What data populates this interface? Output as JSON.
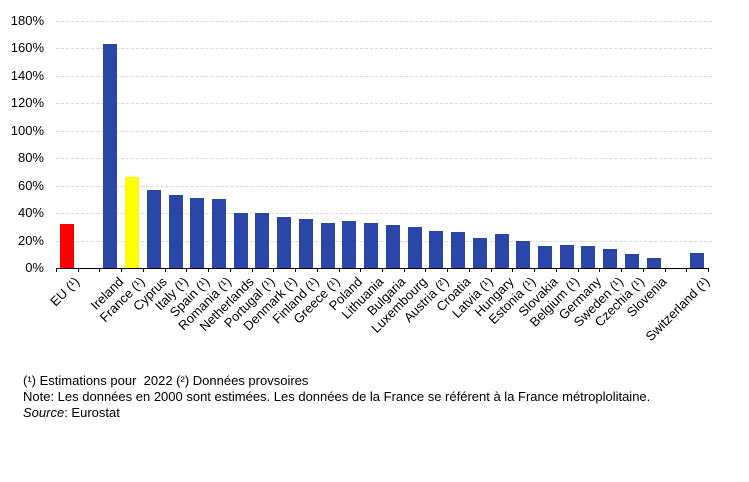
{
  "chart_data": {
    "type": "bar",
    "title": "",
    "xlabel": "",
    "ylabel": "",
    "unit": "%",
    "ylim": [
      0,
      180
    ],
    "ytick_step": 20,
    "ytick_labels": [
      "0%",
      "20%",
      "40%",
      "60%",
      "80%",
      "100%",
      "120%",
      "140%",
      "160%",
      "180%"
    ],
    "grid": "horizontal-dashed",
    "legend": "none",
    "bars": [
      {
        "label": "EU (¹)",
        "value": 32,
        "color": "#FF0000"
      },
      {
        "label": "Ireland",
        "value": 163,
        "color": "#2946A8"
      },
      {
        "label": "France (¹)",
        "value": 66,
        "color": "#FFFF00"
      },
      {
        "label": "Cyprus",
        "value": 57,
        "color": "#2946A8"
      },
      {
        "label": "Italy (¹)",
        "value": 53,
        "color": "#2946A8"
      },
      {
        "label": "Spain (¹)",
        "value": 51,
        "color": "#2946A8"
      },
      {
        "label": "Romania (¹)",
        "value": 50,
        "color": "#2946A8"
      },
      {
        "label": "Netherlands",
        "value": 40,
        "color": "#2946A8"
      },
      {
        "label": "Portugal (¹)",
        "value": 40,
        "color": "#2946A8"
      },
      {
        "label": "Denmark (¹)",
        "value": 37,
        "color": "#2946A8"
      },
      {
        "label": "Finland (¹)",
        "value": 36,
        "color": "#2946A8"
      },
      {
        "label": "Greece (¹)",
        "value": 33,
        "color": "#2946A8"
      },
      {
        "label": "Poland",
        "value": 34,
        "color": "#2946A8"
      },
      {
        "label": "Lithuania",
        "value": 33,
        "color": "#2946A8"
      },
      {
        "label": "Bulgaria",
        "value": 31,
        "color": "#2946A8"
      },
      {
        "label": "Luxembourg",
        "value": 30,
        "color": "#2946A8"
      },
      {
        "label": "Austria (²)",
        "value": 27,
        "color": "#2946A8"
      },
      {
        "label": "Croatia",
        "value": 26,
        "color": "#2946A8"
      },
      {
        "label": "Latvia (¹)",
        "value": 22,
        "color": "#2946A8"
      },
      {
        "label": "Hungary",
        "value": 25,
        "color": "#2946A8"
      },
      {
        "label": "Estonia (¹)",
        "value": 20,
        "color": "#2946A8"
      },
      {
        "label": "Slovakia",
        "value": 16,
        "color": "#2946A8"
      },
      {
        "label": "Belgium (¹)",
        "value": 17,
        "color": "#2946A8"
      },
      {
        "label": "Germany",
        "value": 16,
        "color": "#2946A8"
      },
      {
        "label": "Sweden (¹)",
        "value": 14,
        "color": "#2946A8"
      },
      {
        "label": "Czechia (¹)",
        "value": 10,
        "color": "#2946A8"
      },
      {
        "label": "Slovenia",
        "value": 7,
        "color": "#2946A8"
      },
      {
        "label": "Switzerland (¹)",
        "value": 11,
        "color": "#2946A8"
      }
    ],
    "spacer_after_indices": [
      0,
      26
    ],
    "colors": {
      "default_bar": "#2946A8",
      "eu_bar": "#FF0000",
      "france_bar": "#FFFF00",
      "gridline": "#D9D9D9",
      "axis": "#000000"
    }
  },
  "footnotes": {
    "line1": "(¹) Estimations pour  2022 (²) Données provsoires",
    "line2": "Note: Les données en 2000 sont estimées. Les données de la France se référent à la France métroplolitaine.",
    "source_label": "Source",
    "source_rest": ": Eurostat"
  }
}
